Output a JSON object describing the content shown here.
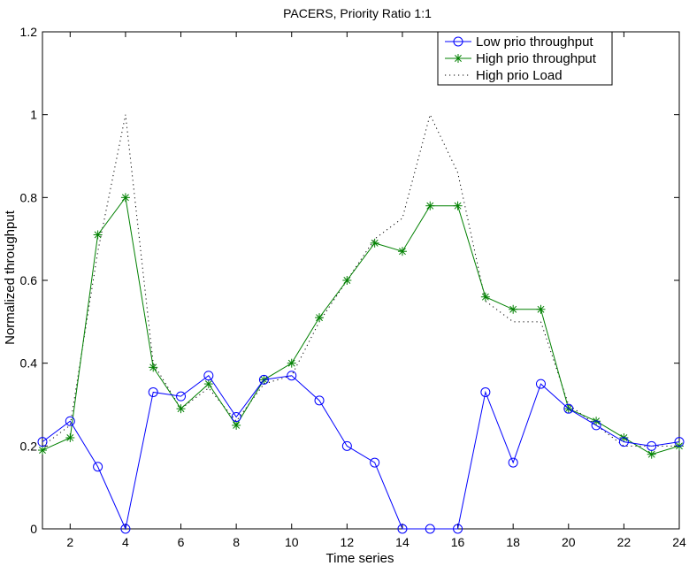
{
  "chart_data": {
    "type": "line",
    "title": "PACERS, Priority Ratio 1:1",
    "xlabel": "Time series",
    "ylabel": "Normalized throughput",
    "xlim": [
      1,
      24
    ],
    "ylim": [
      0,
      1.2
    ],
    "xticks": [
      2,
      4,
      6,
      8,
      10,
      12,
      14,
      16,
      18,
      20,
      22,
      24
    ],
    "yticks": [
      0,
      0.2,
      0.4,
      0.6,
      0.8,
      1,
      1.2
    ],
    "xtick_labels": [
      "2",
      "4",
      "6",
      "8",
      "10",
      "12",
      "14",
      "16",
      "18",
      "20",
      "22",
      "24"
    ],
    "ytick_labels": [
      "0",
      "0.2",
      "0.4",
      "0.6",
      "0.8",
      "1",
      "1.2"
    ],
    "grid": false,
    "legend_position": "top-right",
    "x": [
      1,
      2,
      3,
      4,
      5,
      6,
      7,
      8,
      9,
      10,
      11,
      12,
      13,
      14,
      15,
      16,
      17,
      18,
      19,
      20,
      21,
      22,
      23,
      24
    ],
    "series": [
      {
        "name": "Low prio throughput",
        "color": "#0000ff",
        "marker": "circle",
        "line_style": "solid",
        "values": [
          0.21,
          0.26,
          0.15,
          0.0,
          0.33,
          0.32,
          0.37,
          0.27,
          0.36,
          0.37,
          0.31,
          0.2,
          0.16,
          0.0,
          0.0,
          0.0,
          0.33,
          0.16,
          0.35,
          0.29,
          0.25,
          0.21,
          0.2,
          0.21
        ]
      },
      {
        "name": "High prio throughput",
        "color": "#008000",
        "marker": "asterisk",
        "line_style": "solid",
        "values": [
          0.19,
          0.22,
          0.71,
          0.8,
          0.39,
          0.29,
          0.35,
          0.25,
          0.36,
          0.4,
          0.51,
          0.6,
          0.69,
          0.67,
          0.78,
          0.78,
          0.56,
          0.53,
          0.53,
          0.29,
          0.26,
          0.22,
          0.18,
          0.2
        ]
      },
      {
        "name": "High prio Load",
        "color": "#000000",
        "marker": "none",
        "line_style": "dotted",
        "values": [
          0.2,
          0.25,
          0.67,
          1.0,
          0.4,
          0.29,
          0.34,
          0.26,
          0.35,
          0.37,
          0.5,
          0.6,
          0.7,
          0.75,
          1.0,
          0.86,
          0.55,
          0.5,
          0.5,
          0.3,
          0.25,
          0.2,
          0.2,
          0.2
        ]
      }
    ]
  }
}
